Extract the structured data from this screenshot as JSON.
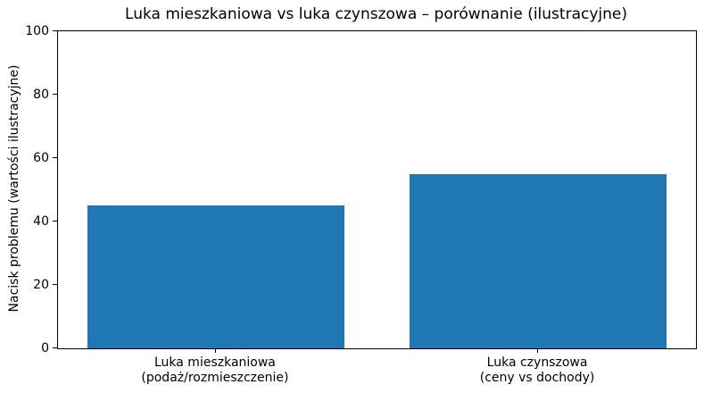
{
  "chart_data": {
    "type": "bar",
    "title": "Luka mieszkaniowa vs luka czynszowa – porównanie (ilustracyjne)",
    "ylabel": "Nacisk problemu (wartości ilustracyjne)",
    "xlabel": "",
    "categories": [
      "Luka mieszkaniowa\n(podaż/rozmieszczenie)",
      "Luka czynszowa\n(ceny vs dochody)"
    ],
    "values": [
      45,
      55
    ],
    "ylim": [
      0,
      100
    ],
    "yticks": [
      0,
      20,
      40,
      60,
      80,
      100
    ],
    "xlim": [
      -0.49,
      1.49
    ],
    "bar_positions": [
      0,
      1
    ],
    "bar_width": 0.8,
    "bar_color": "#1f77b4",
    "grid": false,
    "legend": null,
    "background_color": "#ffffff",
    "spine_color": "#000000"
  }
}
